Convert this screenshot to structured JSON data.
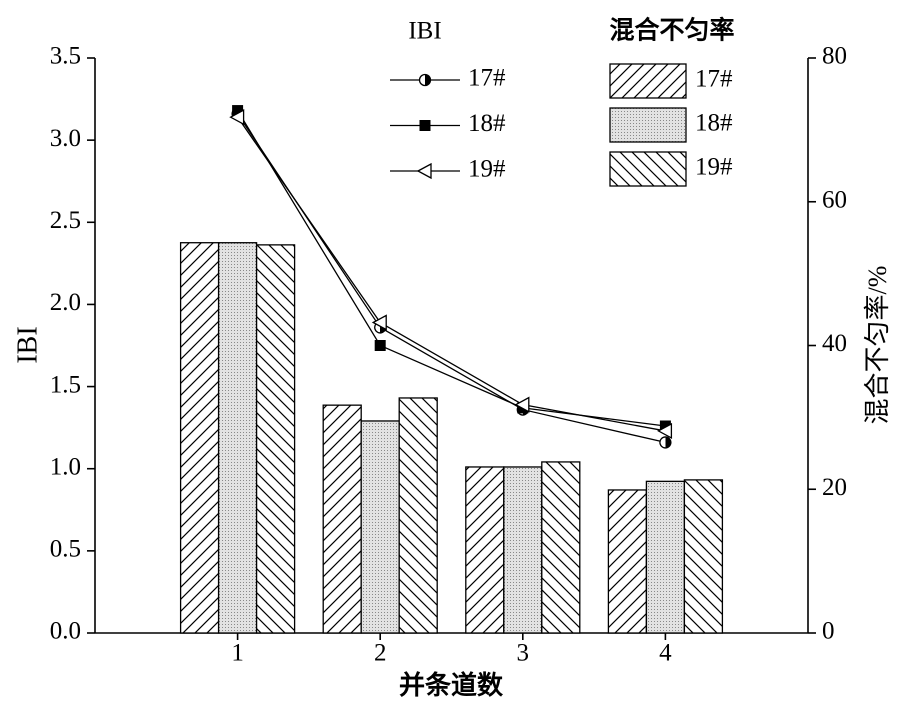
{
  "chart_data": {
    "type": "combo",
    "x_label": "并条道数",
    "y_label": "IBI",
    "y2_label": "混合不匀率/%",
    "line_legend_title": "IBI",
    "bar_legend_title": "混合不匀率",
    "categories": [
      "1",
      "2",
      "3",
      "4"
    ],
    "ylim": [
      0,
      3.5
    ],
    "yticks": [
      {
        "value": 0,
        "label": "0.0"
      },
      0.5,
      {
        "value": 1,
        "label": "1.0"
      },
      1.5,
      {
        "value": 2,
        "label": "2.0"
      },
      2.5,
      {
        "value": 3,
        "label": "3.0"
      },
      3.5
    ],
    "y2lim": [
      0,
      80
    ],
    "y2ticks": [
      0,
      20,
      40,
      60,
      80
    ],
    "series": [
      {
        "name": "17#",
        "type": "bar",
        "axis": "y2",
        "pattern": "hatch-right",
        "color": "#000000",
        "values": [
          54.3,
          31.7,
          23.1,
          19.9
        ]
      },
      {
        "name": "18#",
        "type": "bar",
        "axis": "y2",
        "pattern": "dots",
        "color": "#000000",
        "values": [
          54.3,
          29.5,
          23.1,
          21.1
        ]
      },
      {
        "name": "19#",
        "type": "bar",
        "axis": "y2",
        "pattern": "hatch-left",
        "color": "#000000",
        "values": [
          54.0,
          32.7,
          23.8,
          21.3
        ]
      },
      {
        "name": "17#",
        "type": "line",
        "marker": "half-circle",
        "color": "#000000",
        "values": [
          3.16,
          1.86,
          1.36,
          1.16
        ]
      },
      {
        "name": "18#",
        "type": "line",
        "marker": "square",
        "color": "#000000",
        "values": [
          3.18,
          1.75,
          1.37,
          1.26
        ]
      },
      {
        "name": "19#",
        "type": "line",
        "marker": "triangle-left",
        "color": "#000000",
        "values": [
          3.14,
          1.89,
          1.39,
          1.23
        ]
      }
    ]
  }
}
